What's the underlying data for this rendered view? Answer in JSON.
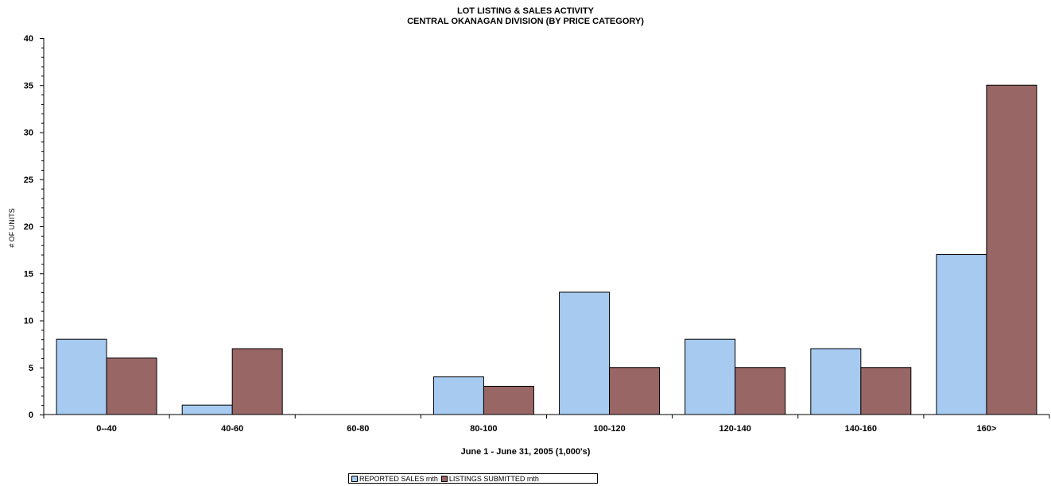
{
  "chart_data": {
    "type": "bar",
    "title": "LOT LISTING & SALES ACTIVITY",
    "subtitle": "CENTRAL OKANAGAN DIVISION (BY PRICE CATEGORY)",
    "xlabel": "June 1 - June 31, 2005 (1,000's)",
    "ylabel": "# OF UNITS",
    "ylim": [
      0,
      40
    ],
    "yticks": [
      0,
      5,
      10,
      15,
      20,
      25,
      30,
      35,
      40
    ],
    "categories": [
      "0--40",
      "40-60",
      "60-80",
      "80-100",
      "100-120",
      "120-140",
      "140-160",
      "160>"
    ],
    "series": [
      {
        "name": "REPORTED SALES mth",
        "color": "#a6caf0",
        "values": [
          8,
          1,
          0,
          4,
          13,
          8,
          7,
          17
        ]
      },
      {
        "name": "LISTINGS SUBMITTED mth",
        "color": "#996666",
        "values": [
          6,
          7,
          0,
          3,
          5,
          5,
          5,
          35
        ]
      }
    ],
    "grid": false,
    "legend_position": "bottom"
  }
}
